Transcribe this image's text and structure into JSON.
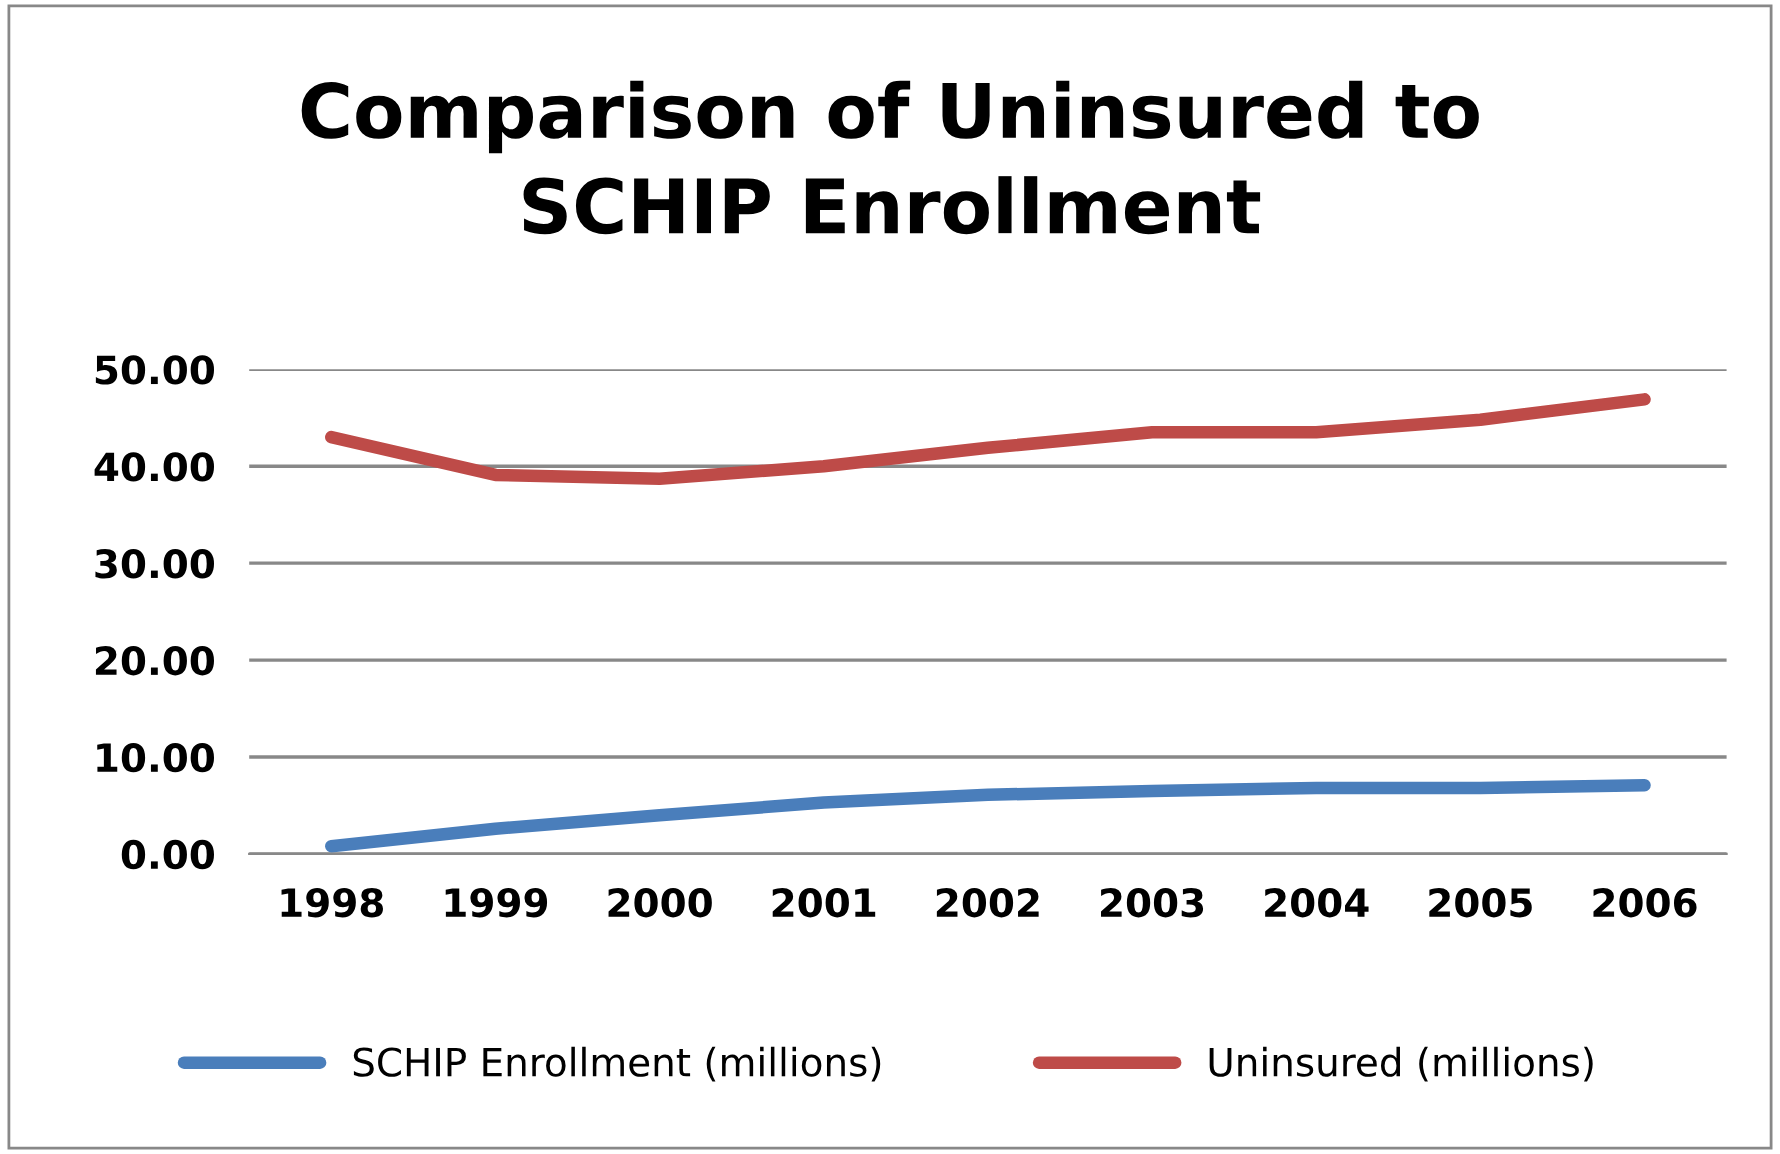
{
  "chart_data": {
    "type": "line",
    "title": "Comparison of Uninsured to\nSCHIP Enrollment",
    "categories": [
      "1998",
      "1999",
      "2000",
      "2001",
      "2002",
      "2003",
      "2004",
      "2005",
      "2006"
    ],
    "series": [
      {
        "name": "SCHIP Enrollment (millions)",
        "color": "#4a7ebb",
        "values": [
          0.8,
          2.6,
          4.0,
          5.3,
          6.1,
          6.5,
          6.8,
          6.8,
          7.1
        ]
      },
      {
        "name": "Uninsured (millions)",
        "color": "#be4b48",
        "values": [
          43.0,
          39.1,
          38.7,
          40.0,
          41.9,
          43.5,
          43.5,
          44.8,
          46.9
        ]
      }
    ],
    "ylim": [
      0,
      50
    ],
    "yticks": [
      {
        "value": 0,
        "label": "0.00"
      },
      {
        "value": 10,
        "label": "10.00"
      },
      {
        "value": 20,
        "label": "20.00"
      },
      {
        "value": 30,
        "label": "30.00"
      },
      {
        "value": 40,
        "label": "40.00"
      },
      {
        "value": 50,
        "label": "50.00"
      }
    ],
    "grid": "y",
    "legend": "bottom",
    "marker": "none",
    "line_style": "solid"
  }
}
